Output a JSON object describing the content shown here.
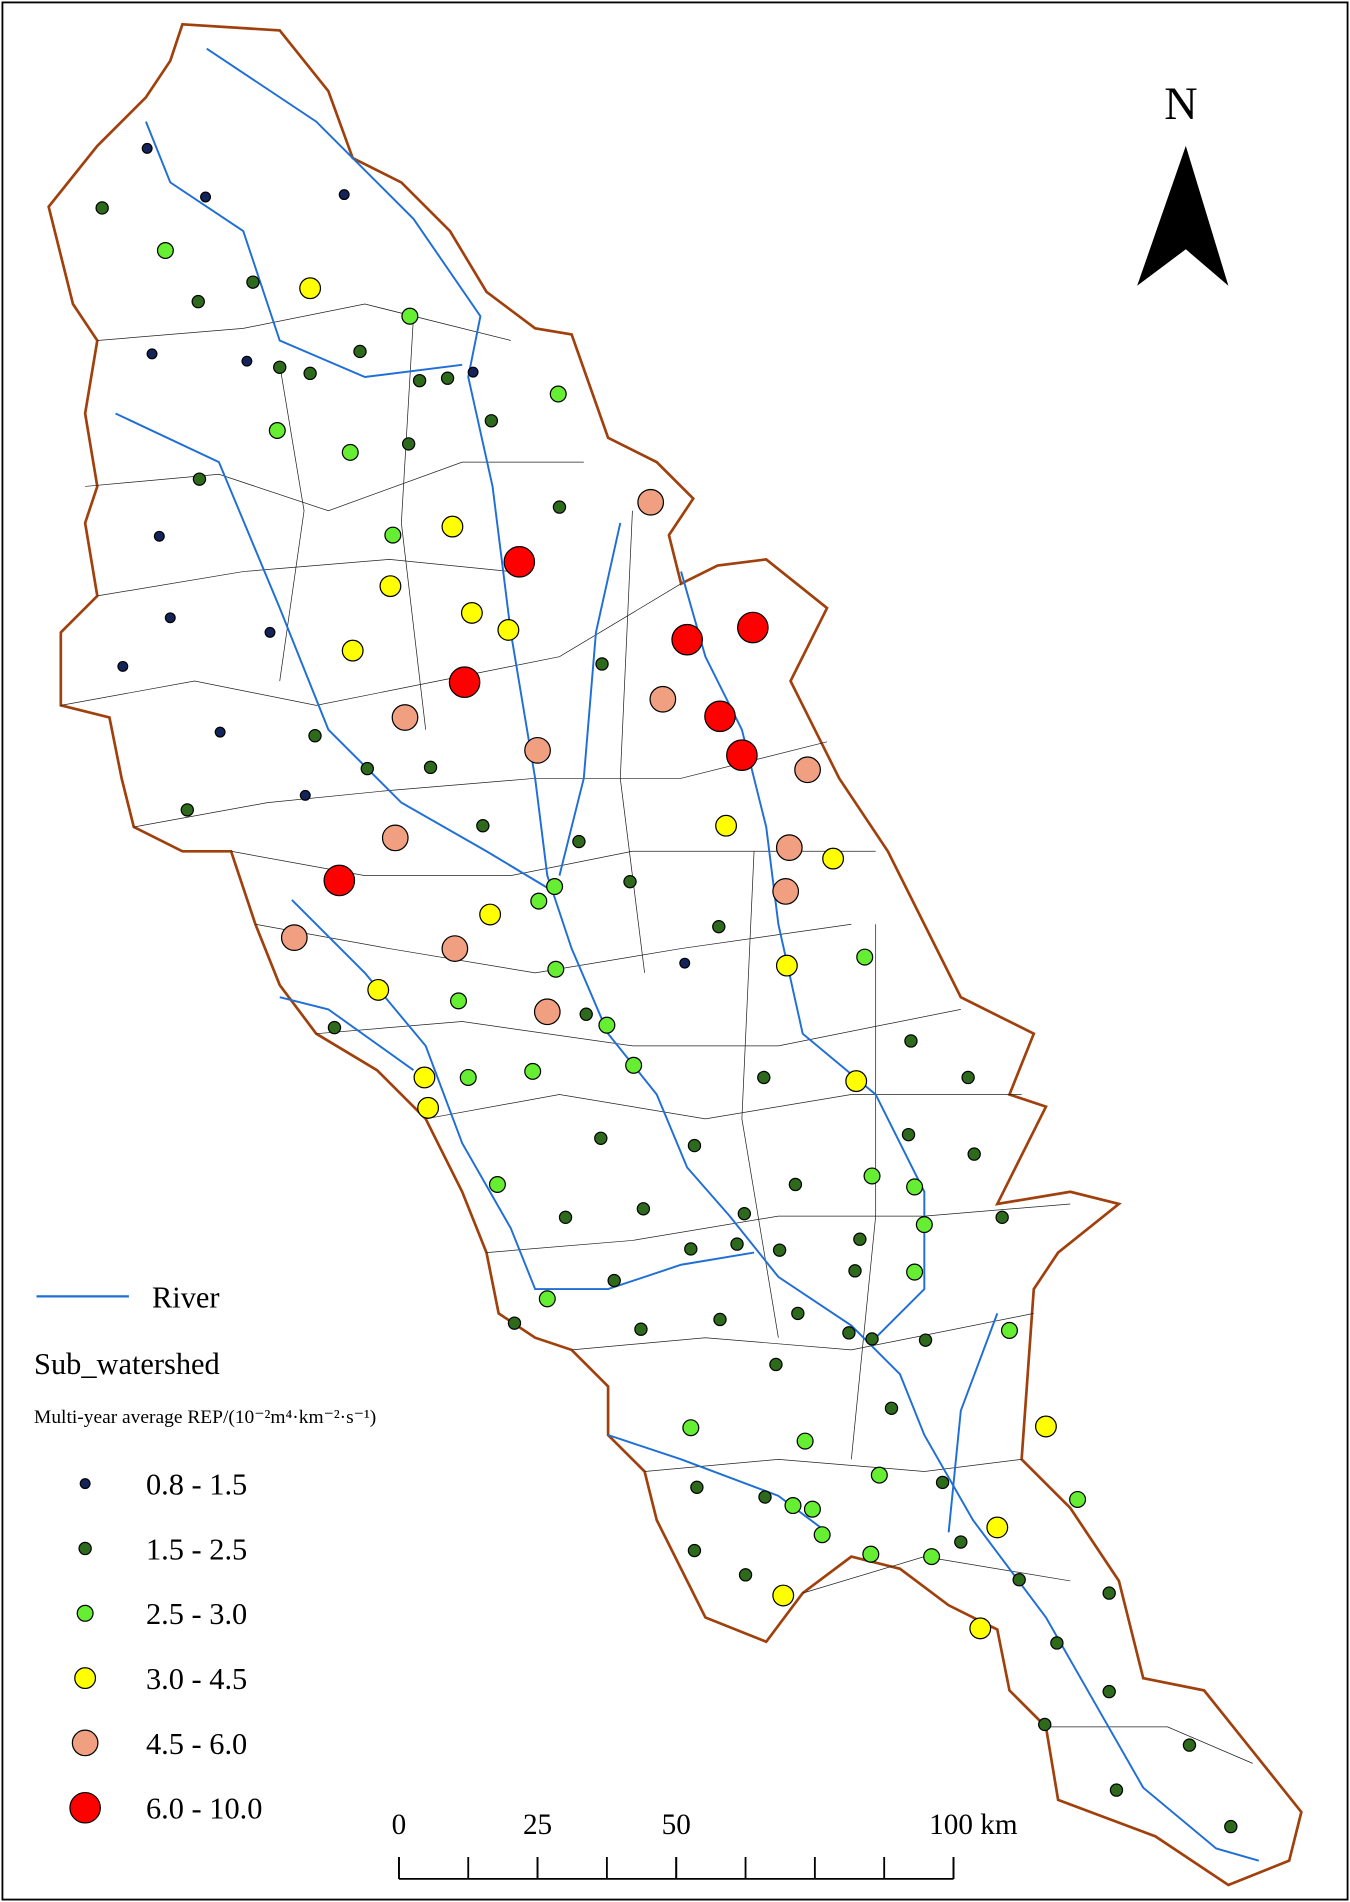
{
  "north_arrow": {
    "label": "N"
  },
  "legend": {
    "river": {
      "label": "River",
      "color": "#1f6fd6"
    },
    "sub_watershed": {
      "label": "Sub_watershed"
    },
    "subtitle": "Multi-year average REP/(10⁻²m⁴·km⁻²·s⁻¹)",
    "classes": [
      {
        "label": "0.8 - 1.5",
        "color": "#14245a"
      },
      {
        "label": "1.5 - 2.5",
        "color": "#2d6a1c"
      },
      {
        "label": "2.5 - 3.0",
        "color": "#66ee33"
      },
      {
        "label": "3.0 - 4.5",
        "color": "#ffff00"
      },
      {
        "label": "4.5 - 6.0",
        "color": "#f0a080"
      },
      {
        "label": "6.0 - 10.0",
        "color": "#ff0000"
      }
    ]
  },
  "scale_bar": {
    "ticks": [
      0,
      25,
      50,
      {
        "value": 100,
        "label": "100 km"
      }
    ]
  }
}
